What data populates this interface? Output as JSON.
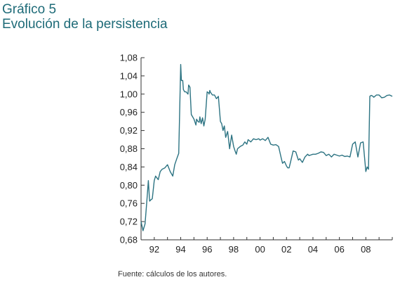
{
  "header": {
    "title": "Gráfico 5",
    "subtitle": "Evolución de la persistencia"
  },
  "source": "Fuente: cálculos de los autores.",
  "chart_data": {
    "type": "line",
    "grid": false,
    "ylim": [
      0.68,
      1.08
    ],
    "xlim": [
      1991.0,
      2010.0
    ],
    "yticks": [
      "1,08",
      "1,04",
      "1,00",
      "0,96",
      "0,92",
      "0,88",
      "0,84",
      "0,80",
      "0,76",
      "0,72",
      "0,68"
    ],
    "xticks": [
      "92",
      "94",
      "96",
      "98",
      "00",
      "02",
      "04",
      "06",
      "08"
    ],
    "series": [
      {
        "color": "#2c7382",
        "x": [
          1991.0,
          1991.15,
          1991.3,
          1991.45,
          1991.55,
          1991.65,
          1991.75,
          1991.85,
          1992.0,
          1992.1,
          1992.3,
          1992.45,
          1992.6,
          1992.8,
          1993.0,
          1993.2,
          1993.4,
          1993.55,
          1993.7,
          1993.85,
          1994.0,
          1994.05,
          1994.15,
          1994.2,
          1994.3,
          1994.4,
          1994.55,
          1994.6,
          1994.7,
          1994.8,
          1995.0,
          1995.15,
          1995.2,
          1995.3,
          1995.4,
          1995.45,
          1995.55,
          1995.65,
          1995.75,
          1995.85,
          1996.0,
          1996.1,
          1996.15,
          1996.2,
          1996.25,
          1996.4,
          1996.55,
          1996.7,
          1996.85,
          1997.0,
          1997.1,
          1997.2,
          1997.3,
          1997.4,
          1997.55,
          1997.7,
          1997.85,
          1998.0,
          1998.1,
          1998.2,
          1998.3,
          1998.5,
          1998.7,
          1998.85,
          1999.0,
          1999.1,
          1999.3,
          1999.5,
          1999.7,
          1999.9,
          2000.0,
          2000.2,
          2000.4,
          2000.6,
          2000.8,
          2001.0,
          2001.2,
          2001.4,
          2001.6,
          2001.7,
          2001.85,
          2002.0,
          2002.1,
          2002.2,
          2002.3,
          2002.5,
          2002.7,
          2002.9,
          2003.0,
          2003.2,
          2003.4,
          2003.6,
          2003.7,
          2003.8,
          2004.0,
          2004.2,
          2004.4,
          2004.6,
          2004.8,
          2005.0,
          2005.2,
          2005.4,
          2005.6,
          2005.8,
          2006.0,
          2006.2,
          2006.4,
          2006.6,
          2006.8,
          2007.0,
          2007.2,
          2007.4,
          2007.6,
          2007.8,
          2008.0,
          2008.1,
          2008.2,
          2008.3,
          2008.4,
          2008.5,
          2008.6,
          2008.8,
          2009.0,
          2009.2,
          2009.4,
          2009.6,
          2009.8,
          2010.0
        ],
        "y": [
          0.72,
          0.7,
          0.715,
          0.77,
          0.81,
          0.765,
          0.768,
          0.77,
          0.81,
          0.82,
          0.812,
          0.83,
          0.835,
          0.838,
          0.845,
          0.83,
          0.82,
          0.845,
          0.858,
          0.87,
          1.065,
          1.03,
          1.03,
          1.01,
          1.005,
          1.005,
          1.0,
          1.02,
          1.015,
          0.955,
          0.945,
          0.932,
          0.945,
          0.94,
          0.938,
          0.95,
          0.935,
          0.948,
          0.93,
          0.945,
          1.005,
          1.003,
          1.0,
          1.008,
          1.004,
          0.998,
          0.998,
          0.99,
          0.995,
          0.94,
          0.935,
          0.92,
          0.93,
          0.905,
          0.918,
          0.88,
          0.91,
          0.885,
          0.876,
          0.868,
          0.88,
          0.885,
          0.888,
          0.895,
          0.89,
          0.9,
          0.895,
          0.902,
          0.9,
          0.902,
          0.899,
          0.902,
          0.898,
          0.905,
          0.89,
          0.888,
          0.889,
          0.885,
          0.86,
          0.848,
          0.852,
          0.842,
          0.838,
          0.838,
          0.85,
          0.875,
          0.873,
          0.855,
          0.858,
          0.85,
          0.862,
          0.868,
          0.865,
          0.866,
          0.868,
          0.868,
          0.87,
          0.873,
          0.872,
          0.865,
          0.868,
          0.862,
          0.868,
          0.866,
          0.864,
          0.866,
          0.863,
          0.864,
          0.862,
          0.89,
          0.895,
          0.862,
          0.893,
          0.895,
          0.83,
          0.84,
          0.835,
          0.995,
          0.997,
          0.996,
          0.993,
          0.998,
          0.998,
          0.992,
          0.993,
          0.997,
          0.998,
          0.995
        ]
      }
    ]
  }
}
